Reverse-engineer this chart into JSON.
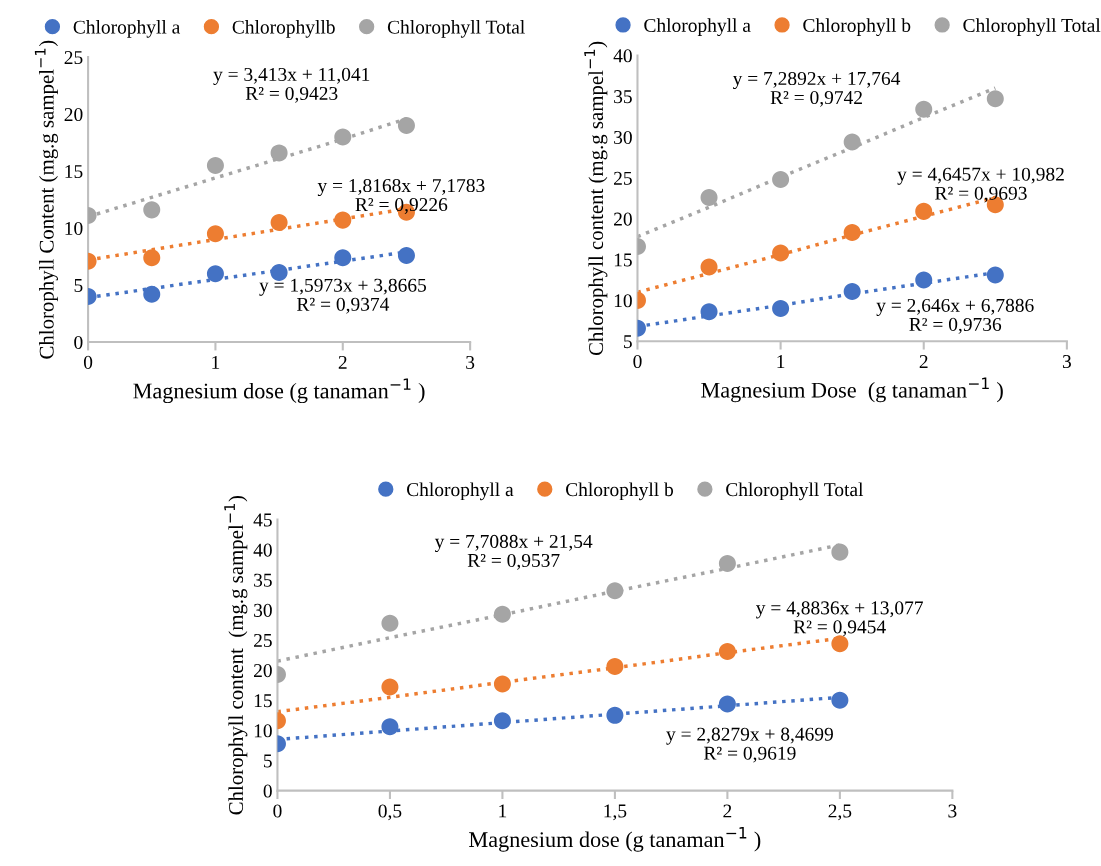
{
  "chart_data": [
    {
      "type": "scatter",
      "xlabel": "Magnesium dose (g tanaman$^{−1}$ )",
      "ylabel": "Chlorophyll Content (mg.g sampel$^{−1}$)",
      "x": [
        0,
        0.5,
        1,
        1.5,
        2,
        2.5
      ],
      "xlim": [
        0,
        3
      ],
      "xticks": [
        0,
        1,
        2,
        3
      ],
      "ylim": [
        0,
        25
      ],
      "yticks": [
        0,
        5,
        10,
        15,
        20,
        25
      ],
      "grid": false,
      "legend": "top",
      "marker": "circle",
      "series": [
        {
          "name": "Chlorophyll a",
          "color": "#4472c4",
          "values": [
            4.0,
            4.2,
            6.0,
            6.1,
            7.4,
            7.6
          ]
        },
        {
          "name": "Chlorophyllb",
          "color": "#ed7d31",
          "values": [
            7.1,
            7.4,
            9.5,
            10.5,
            10.7,
            11.4
          ]
        },
        {
          "name": "Chlorophyll Total",
          "color": "#a5a5a5",
          "values": [
            11.1,
            11.6,
            15.5,
            16.6,
            18.0,
            19.0
          ]
        },
        {
          "type": "line",
          "marker": "none",
          "line_style": "dotted",
          "color": "#4472c4",
          "values": [
            3.9,
            4.7,
            5.5,
            6.3,
            7.1,
            7.9
          ]
        },
        {
          "type": "line",
          "marker": "none",
          "line_style": "dotted",
          "color": "#ed7d31",
          "values": [
            7.2,
            8.1,
            9.0,
            9.9,
            10.8,
            11.7
          ]
        },
        {
          "type": "line",
          "marker": "none",
          "line_style": "dotted",
          "color": "#a5a5a5",
          "values": [
            11.0,
            12.7,
            14.4,
            16.1,
            17.8,
            19.6
          ]
        }
      ],
      "annotations": [
        "y = 3,413x + 11,041\nR² = 0,9423",
        "y = 1,8168x + 7,1783\nR² = 0,9226",
        "y = 1,5973x + 3,8665\nR² = 0,9374"
      ]
    },
    {
      "type": "scatter",
      "xlabel": "Magnesium Dose  (g tanaman$^{−1}$ )",
      "ylabel": "Chlorophyll content (mg.g sampel$^{−1}$)",
      "x": [
        0,
        0.5,
        1,
        1.5,
        2,
        2.5
      ],
      "xlim": [
        0,
        3
      ],
      "xticks": [
        0,
        1,
        2,
        3
      ],
      "ylim": [
        5,
        40
      ],
      "yticks": [
        5,
        10,
        15,
        20,
        25,
        30,
        35,
        40
      ],
      "grid": false,
      "legend": "top",
      "marker": "circle",
      "series": [
        {
          "name": "Chlorophyll a",
          "color": "#4472c4",
          "values": [
            6.6,
            8.6,
            9.0,
            11.1,
            12.5,
            13.1
          ]
        },
        {
          "name": "Chlorophyll b",
          "color": "#ed7d31",
          "values": [
            10.0,
            14.1,
            15.8,
            18.3,
            20.9,
            21.7
          ]
        },
        {
          "name": "Chlorophyll Total",
          "color": "#a5a5a5",
          "values": [
            16.6,
            22.6,
            24.8,
            29.4,
            33.4,
            34.7
          ]
        },
        {
          "type": "line",
          "marker": "none",
          "line_style": "dotted",
          "color": "#4472c4",
          "values": [
            6.8,
            8.1,
            9.4,
            10.8,
            12.1,
            13.4
          ]
        },
        {
          "type": "line",
          "marker": "none",
          "line_style": "dotted",
          "color": "#ed7d31",
          "values": [
            11.0,
            13.3,
            15.6,
            18.0,
            20.3,
            22.6
          ]
        },
        {
          "type": "line",
          "marker": "none",
          "line_style": "dotted",
          "color": "#a5a5a5",
          "values": [
            17.8,
            21.4,
            25.1,
            28.7,
            32.4,
            36.0
          ]
        }
      ],
      "annotations": [
        "y = 7,2892x + 17,764\nR² = 0,9742",
        "y = 4,6457x + 10,982\nR² = 0,9693",
        "y = 2,646x + 6,7886\nR² = 0,9736"
      ]
    },
    {
      "type": "scatter",
      "xlabel": "Magnesium dose (g tanaman$^{−1}$ )",
      "ylabel": "Chlorophyll content  (mg.g sampel$^{−1}$)",
      "x": [
        0,
        0.5,
        1,
        1.5,
        2,
        2.5
      ],
      "xlim": [
        0,
        3
      ],
      "xticks": [
        0,
        {
          "value": 0.5,
          "label": "0,5"
        },
        1,
        {
          "value": 1.5,
          "label": "1,5"
        },
        2,
        {
          "value": 2.5,
          "label": "2,5"
        },
        3
      ],
      "ylim": [
        0,
        45
      ],
      "yticks": [
        0,
        5,
        10,
        15,
        20,
        25,
        30,
        35,
        40,
        45
      ],
      "grid": false,
      "legend": "top",
      "marker": "circle",
      "series": [
        {
          "name": "Chlorophyll a",
          "color": "#4472c4",
          "values": [
            7.8,
            10.6,
            11.6,
            12.5,
            14.4,
            15.0
          ]
        },
        {
          "name": "Chlorophyll b",
          "color": "#ed7d31",
          "values": [
            11.6,
            17.2,
            17.7,
            20.6,
            23.1,
            24.4
          ]
        },
        {
          "name": "Chlorophyll Total",
          "color": "#a5a5a5",
          "values": [
            19.3,
            27.8,
            29.3,
            33.2,
            37.7,
            39.6
          ]
        },
        {
          "type": "line",
          "marker": "none",
          "line_style": "dotted",
          "color": "#4472c4",
          "values": [
            8.5,
            9.9,
            11.3,
            12.7,
            14.1,
            15.5
          ]
        },
        {
          "type": "line",
          "marker": "none",
          "line_style": "dotted",
          "color": "#ed7d31",
          "values": [
            13.1,
            15.5,
            18.0,
            20.4,
            22.9,
            25.3
          ]
        },
        {
          "type": "line",
          "marker": "none",
          "line_style": "dotted",
          "color": "#a5a5a5",
          "values": [
            21.5,
            25.4,
            29.2,
            33.1,
            36.9,
            40.8
          ]
        }
      ],
      "annotations": [
        "y = 7,7088x + 21,54\nR² = 0,9537",
        "y = 4,8836x + 13,077\nR² = 0,9454",
        "y = 2,8279x + 8,4699\nR² = 0,9619"
      ]
    }
  ]
}
